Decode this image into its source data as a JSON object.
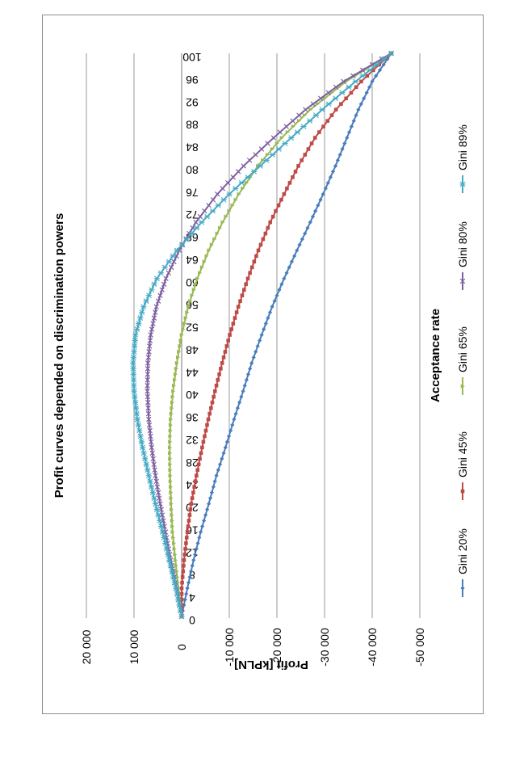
{
  "chart_data": {
    "type": "line",
    "orientation": "rotated-90",
    "title": "Profit curves depended on discrimination powers",
    "xlabel": "Acceptance rate",
    "ylabel": "Profit [kPLN]",
    "xlim": [
      0,
      100
    ],
    "ylim": [
      -50000,
      20000
    ],
    "x_ticks": [
      0,
      4,
      8,
      12,
      16,
      20,
      24,
      28,
      32,
      36,
      40,
      44,
      48,
      52,
      56,
      60,
      64,
      68,
      72,
      76,
      80,
      84,
      88,
      92,
      96,
      100
    ],
    "y_ticks": [
      20000,
      10000,
      0,
      -10000,
      -20000,
      -30000,
      -40000,
      -50000
    ],
    "y_tick_labels": [
      "20 000",
      "10 000",
      "0",
      "-10 000",
      "-20 000",
      "-30 000",
      "-40 000",
      "-50 000"
    ],
    "grid": true,
    "legend_position": "bottom",
    "series": [
      {
        "name": "Gini 20%",
        "color": "#4a7ebb",
        "marker": "diamond",
        "x": [
          0,
          5,
          10,
          15,
          20,
          25,
          30,
          35,
          40,
          45,
          50,
          55,
          60,
          65,
          70,
          75,
          80,
          85,
          90,
          95,
          100
        ],
        "values": [
          0,
          -1200,
          -2500,
          -4000,
          -5700,
          -7300,
          -9200,
          -11000,
          -12900,
          -14700,
          -16800,
          -19000,
          -21500,
          -24200,
          -27000,
          -29700,
          -32300,
          -34700,
          -37100,
          -40000,
          -44000
        ]
      },
      {
        "name": "Gini 45%",
        "color": "#be4b48",
        "marker": "square",
        "x": [
          0,
          5,
          10,
          15,
          20,
          25,
          30,
          35,
          40,
          45,
          50,
          55,
          60,
          65,
          70,
          75,
          80,
          85,
          90,
          95,
          100
        ],
        "values": [
          0,
          0,
          -500,
          -1200,
          -2000,
          -3100,
          -4300,
          -5600,
          -7000,
          -8500,
          -10100,
          -11900,
          -13900,
          -16100,
          -18600,
          -21500,
          -24500,
          -28000,
          -32400,
          -37700,
          -44000
        ]
      },
      {
        "name": "Gini 65%",
        "color": "#98b954",
        "marker": "triangle",
        "x": [
          0,
          5,
          10,
          15,
          20,
          25,
          30,
          35,
          40,
          45,
          50,
          55,
          60,
          65,
          70,
          75,
          80,
          85,
          90,
          95,
          100
        ],
        "values": [
          0,
          700,
          1300,
          1900,
          2200,
          2400,
          2500,
          2300,
          1800,
          1000,
          0,
          -1400,
          -3300,
          -5700,
          -8600,
          -12000,
          -16000,
          -21000,
          -27000,
          -34500,
          -44000
        ]
      },
      {
        "name": "Gini 80%",
        "color": "#7d60a0",
        "marker": "x",
        "x": [
          0,
          5,
          10,
          15,
          20,
          25,
          30,
          35,
          40,
          45,
          50,
          55,
          60,
          65,
          70,
          75,
          80,
          85,
          90,
          95,
          100
        ],
        "values": [
          0,
          1100,
          2300,
          3400,
          4500,
          5500,
          6300,
          6900,
          7200,
          7100,
          6500,
          5300,
          3300,
          500,
          -3000,
          -7500,
          -13000,
          -19300,
          -26000,
          -34000,
          -44000
        ]
      },
      {
        "name": "Gini 89%",
        "color": "#46aac5",
        "marker": "star",
        "x": [
          0,
          5,
          10,
          15,
          20,
          25,
          30,
          35,
          40,
          45,
          50,
          55,
          60,
          65,
          70,
          75,
          80,
          85,
          90,
          95,
          100
        ],
        "values": [
          0,
          1200,
          2600,
          4000,
          5500,
          6900,
          8200,
          9300,
          10000,
          10200,
          9700,
          8000,
          5200,
          1000,
          -4200,
          -10000,
          -16500,
          -23000,
          -29500,
          -36500,
          -44000
        ]
      }
    ]
  }
}
